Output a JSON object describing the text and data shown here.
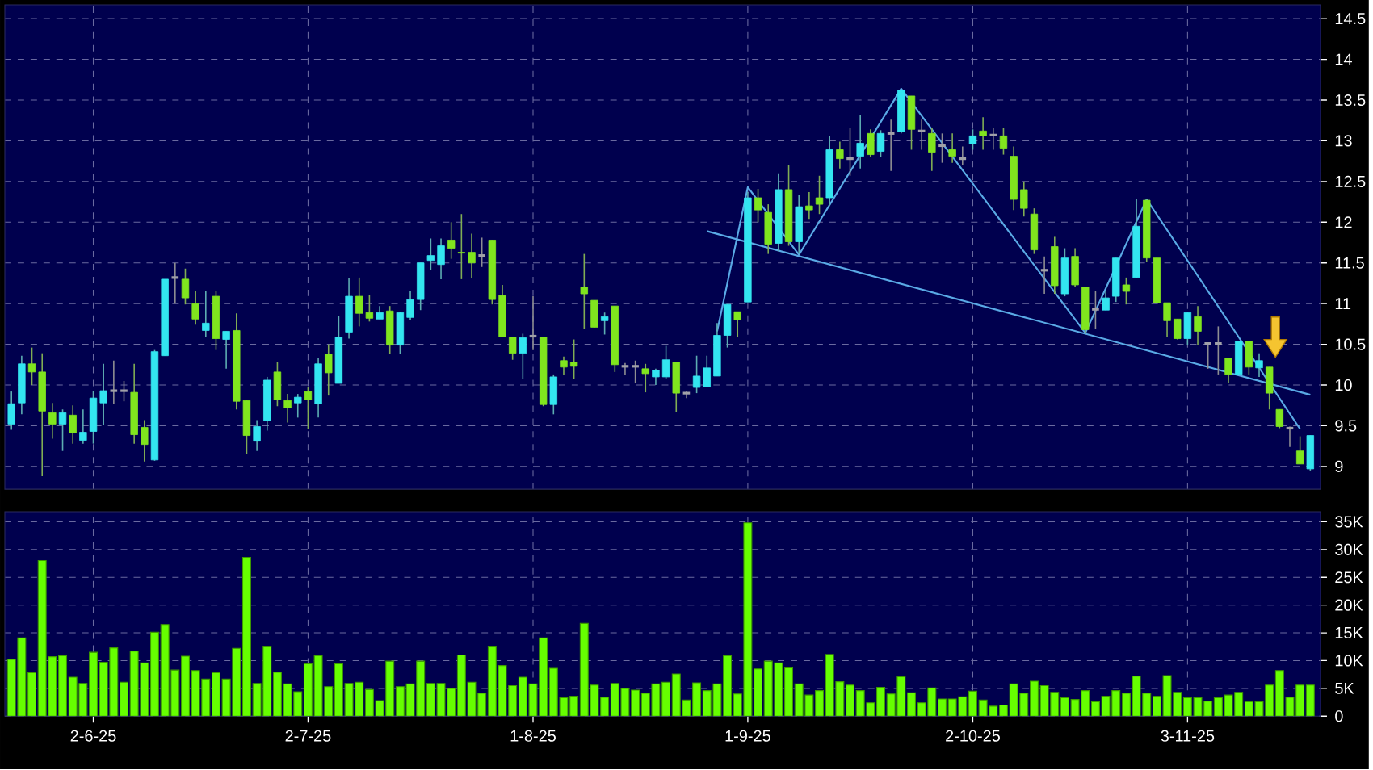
{
  "chart_data": [
    {
      "type": "candlestick",
      "grid": true,
      "tick_labels": "y",
      "ylim": [
        8.72,
        14.67
      ],
      "yticks": [
        9,
        9.5,
        10,
        10.5,
        11,
        11.5,
        12,
        12.5,
        13,
        13.5,
        14,
        14.5
      ],
      "categories": [
        null,
        null,
        null,
        null,
        null,
        null,
        null,
        null,
        null,
        null,
        null,
        null,
        null,
        null,
        null,
        null,
        null,
        null,
        null,
        null,
        null,
        null,
        null,
        null,
        null,
        null,
        null,
        null,
        null,
        null,
        null,
        null,
        null,
        null,
        null,
        null,
        null,
        null,
        null,
        null,
        null,
        null,
        null,
        null,
        null,
        null,
        null,
        null,
        null,
        null,
        null,
        null,
        null,
        null,
        null,
        null,
        null,
        null,
        null,
        null,
        null,
        null,
        null,
        null,
        null,
        null,
        null,
        null,
        null,
        null,
        null,
        null,
        null,
        null,
        null,
        null,
        null,
        null,
        null,
        null,
        null,
        null,
        null,
        null,
        null,
        null,
        null,
        null,
        null,
        null,
        null,
        null,
        null,
        null,
        null,
        null,
        null,
        null,
        null,
        null,
        null,
        null,
        null,
        null,
        null,
        null,
        null,
        null,
        null,
        null,
        null,
        null,
        null,
        null,
        null,
        null,
        null,
        null,
        null,
        null,
        null,
        null,
        null,
        null,
        null,
        null,
        null,
        null
      ],
      "colors": [
        "#33e5f0",
        "#33e5f0",
        "#80e51e",
        "#80e51e",
        "#80e51e",
        "#33e5f0",
        "#80e51e",
        "#33e5f0",
        "#33e5f0",
        "#33e5f0",
        "#a0a0a8",
        "#a0a0a8",
        "#80e51e",
        "#80e51e",
        "#33e5f0",
        "#33e5f0",
        "#a0a0a8",
        "#80e51e",
        "#80e51e",
        "#33e5f0",
        "#80e51e",
        "#33e5f0",
        "#80e51e",
        "#80e51e",
        "#33e5f0",
        "#33e5f0",
        "#80e51e",
        "#80e51e",
        "#33e5f0",
        "#80e51e",
        "#33e5f0",
        "#80e51e",
        "#33e5f0",
        "#33e5f0",
        "#80e51e",
        "#80e51e",
        "#33e5f0",
        "#80e51e",
        "#33e5f0",
        "#33e5f0",
        "#33e5f0",
        "#33e5f0",
        "#33e5f0",
        "#80e51e",
        "#80e51e",
        "#80e51e",
        "#a0a0a8",
        "#80e51e",
        "#80e51e",
        "#80e51e",
        "#33e5f0",
        "#a0a0a8",
        "#80e51e",
        "#33e5f0",
        "#80e51e",
        "#80e51e",
        "#80e51e",
        "#80e51e",
        "#33e5f0",
        "#80e51e",
        "#a0a0a8",
        "#a0a0a8",
        "#80e51e",
        "#33e5f0",
        "#33e5f0",
        "#80e51e",
        "#a0a0a8",
        "#33e5f0",
        "#33e5f0",
        "#33e5f0",
        "#33e5f0",
        "#80e51e",
        "#33e5f0",
        "#80e51e",
        "#80e51e",
        "#33e5f0",
        "#80e51e",
        "#33e5f0",
        "#80e51e",
        "#80e51e",
        "#33e5f0",
        "#80e51e",
        "#a0a0a8",
        "#33e5f0",
        "#80e51e",
        "#33e5f0",
        "#a0a0a8",
        "#33e5f0",
        "#80e51e",
        "#a0a0a8",
        "#80e51e",
        "#a0a0a8",
        "#80e51e",
        "#a0a0a8",
        "#33e5f0",
        "#80e51e",
        "#a0a0a8",
        "#80e51e",
        "#80e51e",
        "#80e51e",
        "#80e51e",
        "#a0a0a8",
        "#80e51e",
        "#33e5f0",
        "#80e51e",
        "#80e51e",
        "#a0a0a8",
        "#33e5f0",
        "#33e5f0",
        "#80e51e",
        "#33e5f0",
        "#80e51e",
        "#80e51e",
        "#80e51e",
        "#80e51e",
        "#33e5f0",
        "#80e51e",
        "#a0a0a8",
        "#a0a0a8",
        "#80e51e",
        "#33e5f0",
        "#80e51e",
        "#33e5f0",
        "#80e51e",
        "#80e51e",
        "#a0a0a8",
        "#80e51e",
        "#33e5f0"
      ],
      "ohlc": [
        [
          9.52,
          9.92,
          9.45,
          9.77
        ],
        [
          9.78,
          10.36,
          9.64,
          10.26
        ],
        [
          10.26,
          10.46,
          10.0,
          10.16
        ],
        [
          10.16,
          10.39,
          8.88,
          9.68
        ],
        [
          9.66,
          9.78,
          9.34,
          9.52
        ],
        [
          9.52,
          9.7,
          9.19,
          9.66
        ],
        [
          9.63,
          9.75,
          9.28,
          9.41
        ],
        [
          9.32,
          9.7,
          9.28,
          9.42
        ],
        [
          9.43,
          9.93,
          9.28,
          9.84
        ],
        [
          9.78,
          10.26,
          9.51,
          9.93
        ],
        [
          9.93,
          10.3,
          9.77,
          9.93
        ],
        [
          9.93,
          10.05,
          9.8,
          9.93
        ],
        [
          9.91,
          10.26,
          9.28,
          9.39
        ],
        [
          9.48,
          9.57,
          9.06,
          9.27
        ],
        [
          9.08,
          10.43,
          9.07,
          10.41
        ],
        [
          10.36,
          11.3,
          10.36,
          11.3
        ],
        [
          11.32,
          11.5,
          11.0,
          11.32
        ],
        [
          11.3,
          11.43,
          10.99,
          11.07
        ],
        [
          11.0,
          11.16,
          10.74,
          10.81
        ],
        [
          10.67,
          11.16,
          10.59,
          10.76
        ],
        [
          11.09,
          11.15,
          10.43,
          10.57
        ],
        [
          10.56,
          10.66,
          10.2,
          10.66
        ],
        [
          10.67,
          10.88,
          9.7,
          9.8
        ],
        [
          9.81,
          9.81,
          9.15,
          9.38
        ],
        [
          9.31,
          9.57,
          9.19,
          9.49
        ],
        [
          9.56,
          10.1,
          9.44,
          10.06
        ],
        [
          10.16,
          10.28,
          9.74,
          9.82
        ],
        [
          9.81,
          9.89,
          9.54,
          9.72
        ],
        [
          9.78,
          9.89,
          9.6,
          9.85
        ],
        [
          9.92,
          9.97,
          9.46,
          9.82
        ],
        [
          9.77,
          10.33,
          9.6,
          10.26
        ],
        [
          10.38,
          10.5,
          9.87,
          10.15
        ],
        [
          10.02,
          10.85,
          10.02,
          10.59
        ],
        [
          10.65,
          11.32,
          10.57,
          11.09
        ],
        [
          11.09,
          11.32,
          10.72,
          10.88
        ],
        [
          10.89,
          11.11,
          10.78,
          10.82
        ],
        [
          10.81,
          10.97,
          10.81,
          10.89
        ],
        [
          10.91,
          10.97,
          10.38,
          10.49
        ],
        [
          10.49,
          10.9,
          10.38,
          10.89
        ],
        [
          10.83,
          11.15,
          10.8,
          11.05
        ],
        [
          11.05,
          11.5,
          10.92,
          11.5
        ],
        [
          11.53,
          11.8,
          11.41,
          11.59
        ],
        [
          11.48,
          11.8,
          11.3,
          11.71
        ],
        [
          11.78,
          12.0,
          11.55,
          11.68
        ],
        [
          11.63,
          12.1,
          11.3,
          11.62
        ],
        [
          11.63,
          11.86,
          11.32,
          11.5
        ],
        [
          11.59,
          11.81,
          11.45,
          11.59
        ],
        [
          11.78,
          11.78,
          10.99,
          11.05
        ],
        [
          11.1,
          11.23,
          10.59,
          10.59
        ],
        [
          10.59,
          10.59,
          10.31,
          10.39
        ],
        [
          10.39,
          10.63,
          10.07,
          10.58
        ],
        [
          10.6,
          11.09,
          10.43,
          10.6
        ],
        [
          10.59,
          10.59,
          9.74,
          9.76
        ],
        [
          9.76,
          10.13,
          9.64,
          10.1
        ],
        [
          10.3,
          10.35,
          10.13,
          10.22
        ],
        [
          10.28,
          10.56,
          10.07,
          10.23
        ],
        [
          11.2,
          11.61,
          10.69,
          11.12
        ],
        [
          11.04,
          11.04,
          10.71,
          10.71
        ],
        [
          10.79,
          10.89,
          10.62,
          10.84
        ],
        [
          10.97,
          10.97,
          10.16,
          10.25
        ],
        [
          10.23,
          10.27,
          10.13,
          10.23
        ],
        [
          10.23,
          10.3,
          10.02,
          10.23
        ],
        [
          10.2,
          10.26,
          9.91,
          10.14
        ],
        [
          10.1,
          10.2,
          10.0,
          10.18
        ],
        [
          10.1,
          10.48,
          10.07,
          10.31
        ],
        [
          10.28,
          10.28,
          9.67,
          9.9
        ],
        [
          9.9,
          9.93,
          9.84,
          9.9
        ],
        [
          9.97,
          10.36,
          9.9,
          10.11
        ],
        [
          9.98,
          10.36,
          9.98,
          10.21
        ],
        [
          10.11,
          10.76,
          10.11,
          10.61
        ],
        [
          10.61,
          10.99,
          10.46,
          10.99
        ],
        [
          10.9,
          10.9,
          10.59,
          10.8
        ],
        [
          11.02,
          12.37,
          11.02,
          12.3
        ],
        [
          12.3,
          12.41,
          12.0,
          12.15
        ],
        [
          12.12,
          12.22,
          11.61,
          11.73
        ],
        [
          11.74,
          12.6,
          11.64,
          12.4
        ],
        [
          12.4,
          12.7,
          11.71,
          11.76
        ],
        [
          11.76,
          12.33,
          11.61,
          12.19
        ],
        [
          12.2,
          12.37,
          12.04,
          12.15
        ],
        [
          12.3,
          12.57,
          12.1,
          12.22
        ],
        [
          12.3,
          13.06,
          12.2,
          12.89
        ],
        [
          12.89,
          12.99,
          12.66,
          12.78
        ],
        [
          12.78,
          13.16,
          12.57,
          12.78
        ],
        [
          12.81,
          13.32,
          12.66,
          12.97
        ],
        [
          13.09,
          13.14,
          12.8,
          12.83
        ],
        [
          12.87,
          13.13,
          12.8,
          13.09
        ],
        [
          13.09,
          13.26,
          12.63,
          13.09
        ],
        [
          13.11,
          13.62,
          13.09,
          13.62
        ],
        [
          13.55,
          13.55,
          12.89,
          13.14
        ],
        [
          13.12,
          13.26,
          12.89,
          13.12
        ],
        [
          13.09,
          13.16,
          12.63,
          12.86
        ],
        [
          12.94,
          13.09,
          12.73,
          12.94
        ],
        [
          12.89,
          13.09,
          12.73,
          12.81
        ],
        [
          12.78,
          12.93,
          12.7,
          12.78
        ],
        [
          12.96,
          13.14,
          12.89,
          13.06
        ],
        [
          13.12,
          13.29,
          12.89,
          13.06
        ],
        [
          13.07,
          13.16,
          12.89,
          13.07
        ],
        [
          13.06,
          13.16,
          12.83,
          12.91
        ],
        [
          12.81,
          12.93,
          12.15,
          12.28
        ],
        [
          12.4,
          12.5,
          12.07,
          12.17
        ],
        [
          12.1,
          12.17,
          11.61,
          11.66
        ],
        [
          11.41,
          11.58,
          11.12,
          11.41
        ],
        [
          11.7,
          11.82,
          11.12,
          11.22
        ],
        [
          11.12,
          11.68,
          11.09,
          11.56
        ],
        [
          11.58,
          11.68,
          11.21,
          11.23
        ],
        [
          11.2,
          11.2,
          10.63,
          10.68
        ],
        [
          10.93,
          11.15,
          10.69,
          10.93
        ],
        [
          10.92,
          11.15,
          10.92,
          11.07
        ],
        [
          11.09,
          11.56,
          11.02,
          11.56
        ],
        [
          11.23,
          11.32,
          10.99,
          11.15
        ],
        [
          11.32,
          12.28,
          11.32,
          11.95
        ],
        [
          12.27,
          12.27,
          11.51,
          11.56
        ],
        [
          11.56,
          11.56,
          11.01,
          11.01
        ],
        [
          11.01,
          11.01,
          10.59,
          10.79
        ],
        [
          10.81,
          10.81,
          10.56,
          10.57
        ],
        [
          10.57,
          10.89,
          10.49,
          10.89
        ],
        [
          10.84,
          10.97,
          10.49,
          10.66
        ],
        [
          10.51,
          10.51,
          10.2,
          10.51
        ],
        [
          10.51,
          10.72,
          10.13,
          10.51
        ],
        [
          10.33,
          10.33,
          10.03,
          10.13
        ],
        [
          10.13,
          10.54,
          10.13,
          10.54
        ],
        [
          10.54,
          10.54,
          10.13,
          10.22
        ],
        [
          10.21,
          10.39,
          10.1,
          10.3
        ],
        [
          10.22,
          10.22,
          9.7,
          9.9
        ],
        [
          9.7,
          9.7,
          9.47,
          9.49
        ],
        [
          9.47,
          9.49,
          9.24,
          9.47
        ],
        [
          9.19,
          9.37,
          9.03,
          9.03
        ],
        [
          8.97,
          9.38,
          8.95,
          9.38
        ]
      ],
      "series": [
        {
          "type": "line",
          "color": "#5aaae6",
          "values": [
            null,
            null,
            null,
            null,
            null,
            null,
            null,
            null,
            null,
            null,
            null,
            null,
            null,
            null,
            null,
            null,
            null,
            null,
            null,
            null,
            null,
            null,
            null,
            null,
            null,
            null,
            null,
            null,
            null,
            null,
            null,
            null,
            null,
            null,
            null,
            null,
            null,
            null,
            null,
            null,
            null,
            null,
            null,
            null,
            null,
            null,
            null,
            null,
            null,
            null,
            null,
            null,
            null,
            null,
            null,
            null,
            null,
            null,
            null,
            null,
            null,
            null,
            null,
            null,
            null,
            null,
            null,
            null,
            11.89,
            null,
            null,
            null,
            null,
            null,
            null,
            null,
            null,
            null,
            null,
            null,
            null,
            null,
            null,
            null,
            null,
            null,
            null,
            null,
            null,
            null,
            null,
            null,
            null,
            null,
            null,
            null,
            null,
            null,
            null,
            null,
            null,
            null,
            null,
            null,
            null,
            null,
            null,
            null,
            null,
            null,
            null,
            null,
            null,
            null,
            null,
            null,
            null,
            null,
            null,
            null,
            null,
            null,
            null,
            null,
            null,
            null,
            null,
            9.88
          ]
        },
        {
          "type": "line",
          "color": "#5aaae6",
          "values": [
            null,
            null,
            null,
            null,
            null,
            null,
            null,
            null,
            null,
            null,
            null,
            null,
            null,
            null,
            null,
            null,
            null,
            null,
            null,
            null,
            null,
            null,
            null,
            null,
            null,
            null,
            null,
            null,
            null,
            null,
            null,
            null,
            null,
            null,
            null,
            null,
            null,
            null,
            null,
            null,
            null,
            null,
            null,
            null,
            null,
            null,
            null,
            null,
            null,
            null,
            null,
            null,
            null,
            null,
            null,
            null,
            null,
            null,
            null,
            null,
            null,
            null,
            null,
            null,
            null,
            null,
            null,
            null,
            null,
            10.66,
            null,
            null,
            12.43,
            null,
            null,
            null,
            null,
            11.6,
            null,
            null,
            null,
            null,
            null,
            null,
            null,
            null,
            null,
            13.64,
            null,
            null,
            null,
            null,
            null,
            null,
            null,
            null,
            null,
            null,
            null,
            null,
            null,
            null,
            null,
            null,
            null,
            10.64,
            null,
            null,
            null,
            null,
            null,
            12.28,
            null,
            null,
            null,
            null,
            null,
            null,
            null,
            null,
            null,
            null,
            null,
            null,
            null,
            null,
            9.46,
            null
          ]
        }
      ]
    },
    {
      "type": "bar",
      "color": "#66ff00",
      "grid": true,
      "ylim": [
        0,
        36800
      ],
      "yticks": [
        0,
        {
          "value": 5000,
          "label": "5K"
        },
        {
          "value": 10000,
          "label": "10K"
        },
        {
          "value": 15000,
          "label": "15K"
        },
        {
          "value": 20000,
          "label": "20K"
        },
        {
          "value": 25000,
          "label": "25K"
        },
        {
          "value": 30000,
          "label": "30K"
        },
        {
          "value": 35000,
          "label": "35K"
        }
      ],
      "categories": [
        null,
        null,
        null,
        null,
        null,
        null,
        null,
        null,
        "2-6-25",
        null,
        null,
        null,
        null,
        null,
        null,
        null,
        null,
        null,
        null,
        null,
        null,
        null,
        null,
        null,
        null,
        null,
        null,
        null,
        null,
        "2-7-25",
        null,
        null,
        null,
        null,
        null,
        null,
        null,
        null,
        null,
        null,
        null,
        null,
        null,
        null,
        null,
        null,
        null,
        null,
        null,
        null,
        null,
        "1-8-25",
        null,
        null,
        null,
        null,
        null,
        null,
        null,
        null,
        null,
        null,
        null,
        null,
        null,
        null,
        null,
        null,
        null,
        null,
        null,
        null,
        "1-9-25",
        null,
        null,
        null,
        null,
        null,
        null,
        null,
        null,
        null,
        null,
        null,
        null,
        null,
        null,
        null,
        null,
        null,
        null,
        null,
        null,
        null,
        "2-10-25",
        null,
        null,
        null,
        null,
        null,
        null,
        null,
        null,
        null,
        null,
        null,
        null,
        null,
        null,
        null,
        null,
        null,
        null,
        null,
        null,
        "3-11-25",
        null,
        null,
        null,
        null,
        null,
        null,
        null,
        null,
        null,
        null,
        null,
        null
      ],
      "values": [
        10200,
        14100,
        7800,
        28000,
        10700,
        10900,
        7000,
        5900,
        11500,
        9700,
        12300,
        6100,
        11700,
        9600,
        15100,
        16500,
        8300,
        10800,
        8200,
        6700,
        7800,
        6700,
        12200,
        28600,
        5900,
        12600,
        7900,
        5800,
        4400,
        9400,
        10900,
        5300,
        9400,
        5900,
        6100,
        4800,
        2800,
        9900,
        5300,
        5800,
        9900,
        5900,
        5900,
        5000,
        11000,
        6100,
        4100,
        12600,
        9100,
        5500,
        7000,
        5800,
        14100,
        8600,
        3300,
        3600,
        16700,
        5600,
        3400,
        5900,
        5000,
        4700,
        4100,
        5800,
        6100,
        7600,
        2900,
        6000,
        4600,
        5800,
        10900,
        4000,
        34800,
        8500,
        9900,
        9600,
        8700,
        5800,
        3800,
        4600,
        11100,
        6200,
        5600,
        4600,
        2400,
        5200,
        4000,
        7100,
        4200,
        2400,
        5100,
        3100,
        3100,
        3500,
        4500,
        2900,
        1800,
        2000,
        5800,
        4100,
        6300,
        5500,
        4300,
        3300,
        3000,
        4600,
        2600,
        3600,
        4600,
        4100,
        7200,
        4100,
        3600,
        7300,
        4300,
        3300,
        3300,
        2700,
        3300,
        3800,
        4300,
        2600,
        2600,
        5600,
        8200,
        3400,
        5600,
        5600
      ]
    }
  ]
}
